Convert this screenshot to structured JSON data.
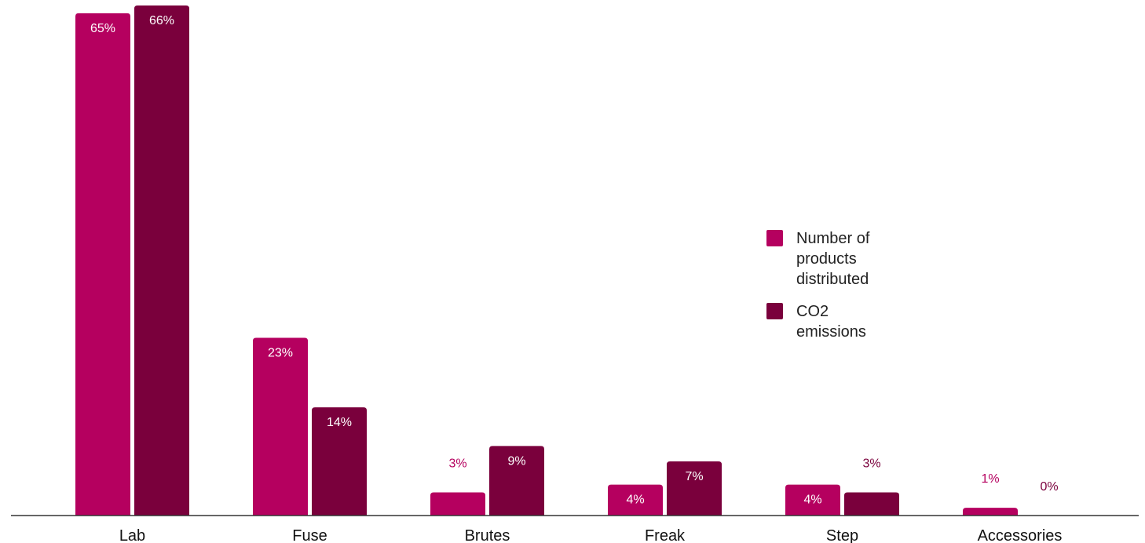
{
  "chart_data": {
    "type": "bar",
    "categories": [
      "Lab",
      "Fuse",
      "Brutes",
      "Freak",
      "Step",
      "Accessories"
    ],
    "series": [
      {
        "name": "Number of products distributed",
        "color": "#b5005f",
        "values": [
          65,
          23,
          3,
          4,
          4,
          1
        ],
        "labels": [
          "65%",
          "23%",
          "3%",
          "4%",
          "4%",
          "1%"
        ]
      },
      {
        "name": "CO2 emissions",
        "color": "#7a003c",
        "values": [
          66,
          14,
          9,
          7,
          3,
          0
        ],
        "labels": [
          "66%",
          "14%",
          "9%",
          "7%",
          "3%",
          "0%"
        ]
      }
    ],
    "ylim": [
      0,
      66
    ],
    "grid": false,
    "legend": {
      "position": "right",
      "entries": [
        [
          "Number of",
          "products",
          "distributed"
        ],
        [
          "CO2",
          "emissions"
        ]
      ]
    }
  }
}
